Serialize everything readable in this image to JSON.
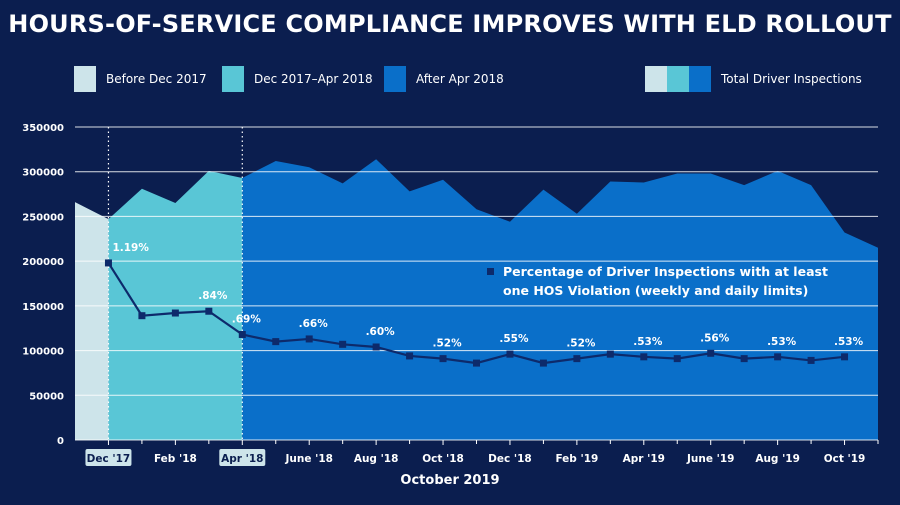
{
  "title": "HOURS-OF-SERVICE COMPLIANCE IMPROVES WITH ELD ROLLOUT",
  "footer": "October 2019",
  "colors": {
    "background": "#0b1e4f",
    "before": "#cde4ea",
    "dec_apr": "#59c6d6",
    "after": "#0a6fc9",
    "line": "#0d2a6b",
    "grid": "#ffffff"
  },
  "legend": {
    "before": "Before Dec 2017",
    "dec_apr": "Dec 2017–Apr 2018",
    "after": "After Apr 2018",
    "total": "Total Driver Inspections"
  },
  "chart_data": {
    "type": "area",
    "ylim": [
      0,
      350000
    ],
    "y_ticks": [
      0,
      50000,
      100000,
      150000,
      200000,
      250000,
      300000,
      350000
    ],
    "x_tick_labels": [
      "Dec '17",
      "Feb '18",
      "Apr '18",
      "June '18",
      "Aug '18",
      "Oct '18",
      "Dec '18",
      "Feb '19",
      "Apr '19",
      "June '19",
      "Aug '19",
      "Oct '19"
    ],
    "highlighted_ticks": [
      "Dec '17",
      "Apr '18"
    ],
    "period_boundaries": [
      "Dec '17",
      "Apr '18"
    ],
    "series": [
      {
        "name": "Total Driver Inspections",
        "kind": "area",
        "values": [
          266000,
          247000,
          281000,
          265000,
          301000,
          293000,
          312000,
          305000,
          287000,
          314000,
          278000,
          291000,
          258000,
          244000,
          280000,
          253000,
          289000,
          288000,
          298000,
          298000,
          285000,
          301000,
          285000,
          232000,
          215000
        ]
      },
      {
        "name": "Percentage of Driver Inspections with at least one HOS Violation (weekly and daily limits)",
        "kind": "line",
        "values": [
          198000,
          139000,
          142000,
          144000,
          118000,
          110000,
          113000,
          107000,
          104000,
          94000,
          91000,
          86000,
          96000,
          86000,
          91000,
          96000,
          93000,
          91000,
          97000,
          91000,
          93000,
          89000,
          93000
        ]
      }
    ],
    "line_labels": [
      {
        "index": 0,
        "text": "1.19%"
      },
      {
        "index": 3,
        "text": ".84%"
      },
      {
        "index": 4,
        "text": ".69%"
      },
      {
        "index": 6,
        "text": ".66%"
      },
      {
        "index": 8,
        "text": ".60%"
      },
      {
        "index": 10,
        "text": ".52%"
      },
      {
        "index": 12,
        "text": ".55%"
      },
      {
        "index": 14,
        "text": ".52%"
      },
      {
        "index": 16,
        "text": ".53%"
      },
      {
        "index": 18,
        "text": ".56%"
      },
      {
        "index": 20,
        "text": ".53%"
      },
      {
        "index": 22,
        "text": ".53%"
      }
    ],
    "annotation": {
      "line1": "Percentage of Driver Inspections with at least",
      "line2": "one HOS Violation (weekly and daily limits)"
    }
  }
}
